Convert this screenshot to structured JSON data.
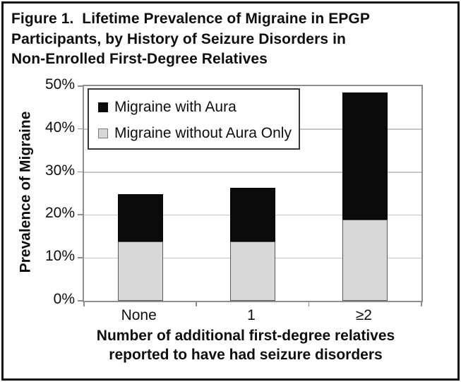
{
  "figure": {
    "title": "Figure 1.  Lifetime Prevalence of Migraine in EPGP Participants, by History of Seizure Disorders in Non-Enrolled First-Degree Relatives",
    "title_lines": [
      "Figure 1.  Lifetime Prevalence of Migraine in EPGP",
      "Participants, by History of Seizure Disorders in",
      "Non-Enrolled First-Degree Relatives"
    ]
  },
  "chart_data": {
    "type": "bar",
    "stacked": true,
    "categories": [
      "None",
      "1",
      "≥2"
    ],
    "series": [
      {
        "name": "Migraine without Aura Only",
        "color": "#d8d8d8",
        "border": "#5a5a5a",
        "values": [
          13.9,
          13.9,
          18.9
        ]
      },
      {
        "name": "Migraine with Aura",
        "color": "#0b0b0b",
        "border": "#000000",
        "values": [
          10.9,
          12.4,
          29.7
        ]
      }
    ],
    "stack_totals": [
      24.8,
      26.3,
      48.6
    ],
    "title": "",
    "ylabel": "Prevalence of Migraine",
    "xlabel": "Number of additional first-degree relatives reported to have had seizure disorders",
    "xlabel_lines": [
      "Number of additional first-degree relatives",
      "reported to have had seizure disorders"
    ],
    "ylim": [
      0,
      50
    ],
    "yticks": [
      "0%",
      "10%",
      "20%",
      "30%",
      "40%",
      "50%"
    ],
    "grid": true,
    "legend": {
      "position": "top-left-inside",
      "items": [
        {
          "label": "Migraine with Aura",
          "swatch_color": "#0b0b0b",
          "swatch_border": "#0b0b0b"
        },
        {
          "label": "Migraine without Aura Only",
          "swatch_color": "#d8d8d8",
          "swatch_border": "#7a7a7a"
        }
      ]
    }
  },
  "colors": {
    "frame_border": "#151515",
    "plot_border": "#8e8e8e",
    "gridline": "#c6c6c6",
    "bar_black": "#0b0b0b",
    "bar_gray": "#d8d8d8",
    "background": "#ffffff",
    "text": "#0e0e0e"
  }
}
